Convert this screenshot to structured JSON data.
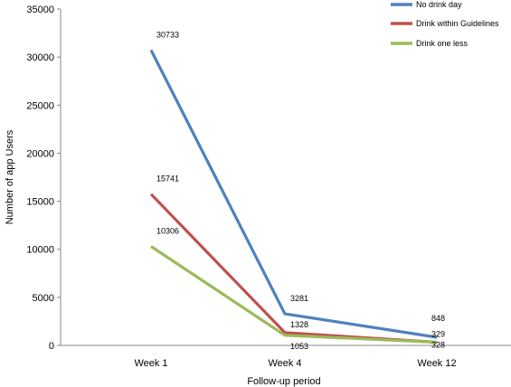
{
  "chart_data": {
    "type": "line",
    "categories": [
      "Week 1",
      "Week 4",
      "Week 12"
    ],
    "series": [
      {
        "name": "No drink day",
        "values": [
          30733,
          3281,
          848
        ],
        "labels": [
          "30733",
          "3281",
          "848"
        ],
        "color": "#4F81BD"
      },
      {
        "name": "Drink within Guidelines",
        "values": [
          15741,
          1328,
          329
        ],
        "labels": [
          "15741",
          "1328",
          "329"
        ],
        "color": "#C0504D"
      },
      {
        "name": "Drink one less",
        "values": [
          10306,
          1053,
          328
        ],
        "labels": [
          "10306",
          "1053",
          "328"
        ],
        "color": "#9BBB59"
      }
    ],
    "xlabel": "Follow-up period",
    "ylabel": "Number of app Users",
    "ylim": [
      0,
      35000
    ],
    "yticks": [
      0,
      5000,
      10000,
      15000,
      20000,
      25000,
      30000,
      35000
    ],
    "grid": false,
    "legend_position": "top-right"
  }
}
